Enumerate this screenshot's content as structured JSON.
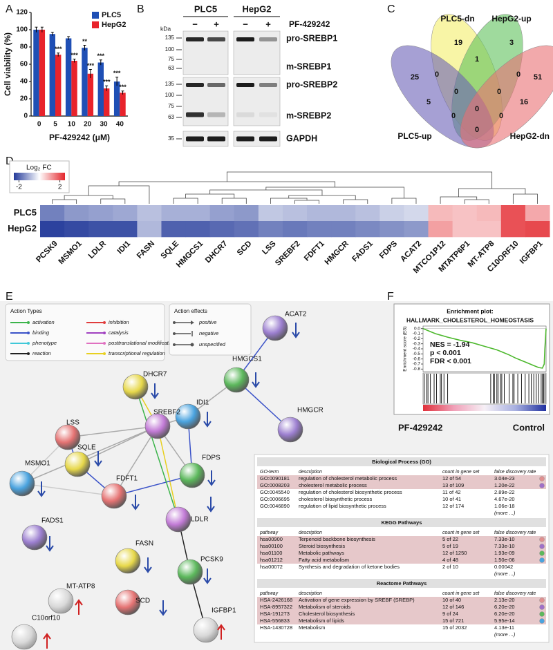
{
  "panel_labels": [
    "A",
    "B",
    "C",
    "D",
    "E",
    "F"
  ],
  "chart_data": [
    {
      "type": "bar",
      "x_label": "PF-429242 (μM)",
      "y_label": "Cell viability (%)",
      "categories": [
        "0",
        "5",
        "10",
        "20",
        "30",
        "40"
      ],
      "series": [
        {
          "name": "PLC5",
          "color": "#1f4fb5",
          "values": [
            100,
            95,
            90,
            79,
            62,
            40
          ],
          "errors": [
            3,
            2,
            2,
            3,
            3,
            5
          ],
          "significance": [
            null,
            null,
            null,
            "**",
            "***",
            "***"
          ]
        },
        {
          "name": "HepG2",
          "color": "#e8232b",
          "values": [
            100,
            71,
            64,
            49,
            32,
            27
          ],
          "errors": [
            3,
            2,
            2,
            5,
            3,
            2
          ],
          "significance": [
            null,
            "***",
            "***",
            "***",
            "***",
            "***"
          ]
        }
      ],
      "ylim": [
        0,
        120
      ],
      "yticks": [
        0,
        20,
        40,
        60,
        80,
        100,
        120
      ],
      "legend": "upper right"
    },
    {
      "type": "heatmap",
      "legend_title": "Log₂ FC",
      "colorbar_ticks": [
        -2,
        2
      ],
      "zlim": [
        -2.5,
        2.5
      ],
      "colors": [
        "#233a9a",
        "#ffffff",
        "#e3262c"
      ],
      "rows": [
        "PLC5",
        "HepG2"
      ],
      "categories": [
        "PCSK9",
        "MSMO1",
        "LDLR",
        "IDI1",
        "FASN",
        "SQLE",
        "HMGCS1",
        "DHCR7",
        "SCD",
        "LSS",
        "SREBF2",
        "FDFT1",
        "HMGCR",
        "FADS1",
        "FDPS",
        "ACAT2",
        "MTCO1P12",
        "MTATP6P1",
        "MT-ATP8",
        "C10ORF10",
        "IGFBP1"
      ],
      "values": [
        [
          -1.6,
          -1.3,
          -1.2,
          -1.1,
          -0.8,
          -1.0,
          -1.0,
          -1.2,
          -1.3,
          -0.7,
          -0.8,
          -0.9,
          -0.9,
          -0.8,
          -0.6,
          -0.5,
          0.8,
          0.7,
          0.8,
          2.0,
          1.0
        ],
        [
          -2.4,
          -2.3,
          -2.2,
          -2.2,
          -0.9,
          -2.0,
          -2.0,
          -1.9,
          -1.8,
          -1.6,
          -1.7,
          -1.6,
          -1.6,
          -1.5,
          -1.4,
          -1.3,
          1.1,
          0.7,
          0.7,
          2.0,
          2.1
        ]
      ]
    },
    {
      "type": "line",
      "title": "Enrichment plot:",
      "subtitle": "HALLMARK_CHOLESTEROL_HOMEOSTASIS",
      "y_label": "Enrichment score (ES)",
      "x": [
        0,
        5,
        10,
        20,
        30,
        40,
        50,
        60,
        65,
        70,
        75,
        80,
        85,
        90,
        94,
        97,
        98.5,
        99,
        100
      ],
      "values": [
        0,
        -0.05,
        -0.1,
        -0.17,
        -0.23,
        -0.28,
        -0.35,
        -0.42,
        -0.47,
        -0.52,
        -0.58,
        -0.63,
        -0.68,
        -0.73,
        -0.77,
        -0.78,
        -0.7,
        -0.4,
        0
      ],
      "xlim": [
        0,
        100
      ],
      "color": "#4cb82c",
      "ylim": [
        -0.85,
        0.05
      ],
      "yticks": [
        {
          "value": 0,
          "label": "0.0"
        },
        -0.1,
        -0.2,
        -0.3,
        -0.4,
        -0.5,
        -0.6,
        -0.7,
        -0.8
      ],
      "hits": [
        1,
        3,
        4,
        6,
        9,
        11,
        14,
        15,
        17,
        20,
        55,
        57,
        58,
        60,
        61,
        63,
        64,
        66,
        70,
        73,
        74,
        77,
        80,
        83,
        86,
        88,
        90,
        92,
        94,
        96,
        97,
        98,
        99
      ],
      "annotations": [
        "NES = -1.94",
        "p < 0.001",
        "FDR < 0.001"
      ],
      "group_labels": [
        "PF-429242",
        "Control"
      ]
    }
  ],
  "western_blot": {
    "cell_lines": [
      "PLC5",
      "HepG2"
    ],
    "unit": "kDa",
    "treatment": "PF-429242",
    "lanes": [
      "−",
      "+",
      "−",
      "+"
    ],
    "blots": [
      {
        "markers": [
          "135",
          "100",
          "75",
          "63"
        ],
        "labels": [
          "pro-SREBP1",
          "m-SREBP1"
        ]
      },
      {
        "markers": [
          "135",
          "100",
          "75",
          "63"
        ],
        "labels": [
          "pro-SREBP2",
          "m-SREBP2"
        ]
      },
      {
        "markers": [
          "35"
        ],
        "labels": [
          "GAPDH"
        ]
      }
    ]
  },
  "venn": {
    "sets": [
      {
        "name": "PLC5-dn",
        "color": "#f4ee6b",
        "text_color": "#8c8a2c"
      },
      {
        "name": "HepG2-up",
        "color": "#5fc25c",
        "text_color": "#3c9a3c"
      },
      {
        "name": "PLC5-up",
        "color": "#6a60b8",
        "text_color": "#3355aa"
      },
      {
        "name": "HepG2-dn",
        "color": "#ea6f73",
        "text_color": "#e04848"
      }
    ],
    "regions": [
      "19",
      "3",
      "25",
      "0",
      "1",
      "0",
      "51",
      "0",
      "0",
      "5",
      "0",
      "16",
      "0",
      "0",
      "0"
    ]
  },
  "network": {
    "action_types": {
      "title": "Action Types",
      "items": [
        {
          "label": "activation",
          "color": "#3cb44b"
        },
        {
          "label": "inhibition",
          "color": "#e03c3c"
        },
        {
          "label": "binding",
          "color": "#3a52c8"
        },
        {
          "label": "catalysis",
          "color": "#a040c0"
        },
        {
          "label": "phenotype",
          "color": "#40c8d8"
        },
        {
          "label": "posttranslational modification",
          "color": "#e070c0"
        },
        {
          "label": "reaction",
          "color": "#222222"
        },
        {
          "label": "transcriptional regulation",
          "color": "#e8d020"
        }
      ]
    },
    "action_effects": {
      "title": "Action effects",
      "items": [
        "positive",
        "negative",
        "unspecified"
      ]
    },
    "nodes": [
      {
        "label": "ACAT2",
        "change": "down"
      },
      {
        "label": "DHCR7",
        "change": "down"
      },
      {
        "label": "HMGCS1",
        "change": "down"
      },
      {
        "label": "IDI1",
        "change": "down"
      },
      {
        "label": "LSS",
        "change": null
      },
      {
        "label": "SREBF2",
        "change": null
      },
      {
        "label": "HMGCR",
        "change": null
      },
      {
        "label": "SQLE",
        "change": "down"
      },
      {
        "label": "FDPS",
        "change": "down"
      },
      {
        "label": "MSMO1",
        "change": "down"
      },
      {
        "label": "FDFT1",
        "change": "down"
      },
      {
        "label": "LDLR",
        "change": "down"
      },
      {
        "label": "FADS1",
        "change": "down"
      },
      {
        "label": "FASN",
        "change": "down"
      },
      {
        "label": "PCSK9",
        "change": "down"
      },
      {
        "label": "MT-ATP8",
        "change": "up"
      },
      {
        "label": "SCD",
        "change": "down"
      },
      {
        "label": "IGFBP1",
        "change": "up"
      },
      {
        "label": "C10orf10",
        "change": "up"
      }
    ]
  },
  "tables": [
    {
      "title": "Biological Process (GO)",
      "columns": [
        "GO-term",
        "description",
        "count in gene set",
        "false discovery rate"
      ],
      "rows": [
        [
          "GO:0090181",
          "regulation of cholesterol metabolic process",
          "12 of 54",
          "3.04e-23"
        ],
        [
          "GO:0008203",
          "cholesterol metabolic process",
          "13 of 109",
          "1.20e-22"
        ],
        [
          "GO:0045540",
          "regulation of cholesterol biosynthetic process",
          "11 of 42",
          "2.89e-22"
        ],
        [
          "GO:0006695",
          "cholesterol biosynthetic process",
          "10 of 41",
          "4.67e-20"
        ],
        [
          "GO:0046890",
          "regulation of lipid biosynthetic process",
          "12 of 174",
          "1.06e-18"
        ]
      ],
      "highlight": [
        true,
        true,
        false,
        false,
        false
      ],
      "more": "(more ...)"
    },
    {
      "title": "KEGG Pathways",
      "columns": [
        "pathway",
        "description",
        "count in gene set",
        "false discovery rate"
      ],
      "rows": [
        [
          "hsa00900",
          "Terpenoid backbone biosynthesis",
          "5 of 22",
          "7.33e-10"
        ],
        [
          "hsa00100",
          "Steroid biosynthesis",
          "5 of 19",
          "7.33e-10"
        ],
        [
          "hsa01100",
          "Metabolic pathways",
          "12 of 1250",
          "1.93e-09"
        ],
        [
          "hsa01212",
          "Fatty acid metabolism",
          "4 of 48",
          "1.50e-06"
        ],
        [
          "hsa00072",
          "Synthesis and degradation of ketone bodies",
          "2 of 10",
          "0.00042"
        ]
      ],
      "highlight": [
        true,
        true,
        true,
        true,
        false
      ],
      "more": "(more ...)"
    },
    {
      "title": "Reactome Pathways",
      "columns": [
        "pathway",
        "description",
        "count in gene set",
        "false discovery rate"
      ],
      "rows": [
        [
          "HSA-2426168",
          "Activation of gene expression by SREBF (SREBP)",
          "10 of 40",
          "2.13e-20"
        ],
        [
          "HSA-8957322",
          "Metabolism of steroids",
          "12 of 146",
          "6.20e-20"
        ],
        [
          "HSA-191273",
          "Cholesterol biosynthesis",
          "9 of 24",
          "6.20e-20"
        ],
        [
          "HSA-556833",
          "Metabolism of lipids",
          "15 of 721",
          "5.95e-14"
        ],
        [
          "HSA-1430728",
          "Metabolism",
          "15 of 2032",
          "4.13e-11"
        ]
      ],
      "highlight": [
        true,
        true,
        true,
        true,
        false
      ],
      "more": "(more ...)"
    }
  ]
}
